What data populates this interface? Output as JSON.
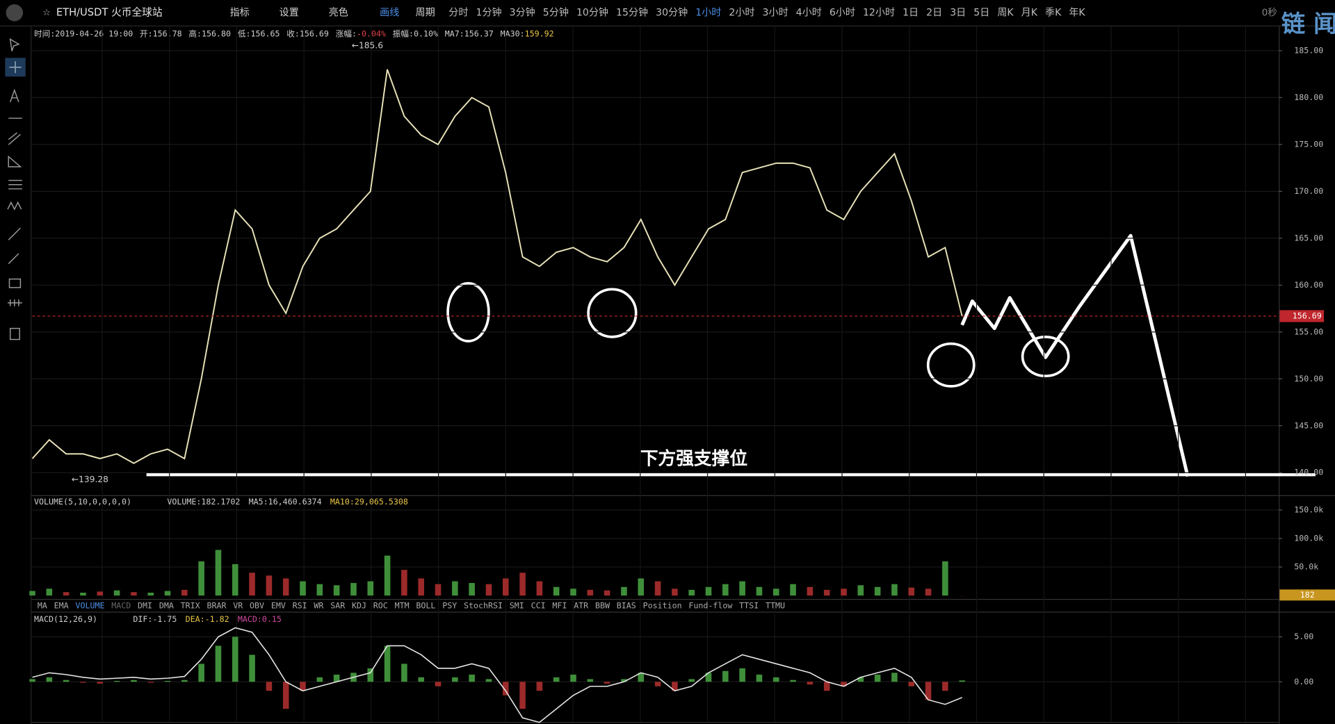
{
  "toolbar": {
    "symbol": "ETH/USDT 火币全球站",
    "buttons": [
      "指标",
      "设置",
      "亮色",
      "画线"
    ],
    "period_label": "周期",
    "periods": [
      "分时",
      "1分钟",
      "3分钟",
      "5分钟",
      "10分钟",
      "15分钟",
      "30分钟",
      "1小时",
      "2小时",
      "3小时",
      "4小时",
      "6小时",
      "12小时",
      "1日",
      "2日",
      "3日",
      "5日",
      "周K",
      "月K",
      "季K",
      "年K"
    ],
    "active_period_index": 7,
    "timer": "0秒"
  },
  "info": [
    {
      "label": "时间:",
      "value": "2019-04-26 19:00"
    },
    {
      "label": "开:",
      "value": "156.78"
    },
    {
      "label": "高:",
      "value": "156.80"
    },
    {
      "label": "低:",
      "value": "156.65"
    },
    {
      "label": "收:",
      "value": "156.69"
    },
    {
      "label": "涨幅:",
      "value": "-0.04%",
      "color": "#e0414a"
    },
    {
      "label": "振幅:",
      "value": "0.10%"
    },
    {
      "label": "MA7:",
      "value": "156.37"
    },
    {
      "label": "MA30:",
      "value": "159.92",
      "color": "#e8c547"
    }
  ],
  "indicator_tabs": [
    "MA",
    "EMA",
    "VOLUME",
    "MACD",
    "DMI",
    "DMA",
    "TRIX",
    "BRAR",
    "VR",
    "OBV",
    "EMV",
    "RSI",
    "WR",
    "SAR",
    "KDJ",
    "ROC",
    "MTM",
    "BOLL",
    "PSY",
    "StochRSI",
    "SMI",
    "CCI",
    "MFI",
    "ATR",
    "BBW",
    "BIAS",
    "Position",
    "Fund-flow",
    "TTSI",
    "TTMU"
  ],
  "active_tab_index": 2,
  "dim_tab_index": 3,
  "volume_header": [
    {
      "text": "VOLUME(5,10,0,0,0,0)"
    },
    {
      "text": "VOLUME:182.1702"
    },
    {
      "text": "MA5:16,460.6374"
    },
    {
      "text": "MA10:29,065.5308",
      "color": "#e8c547"
    }
  ],
  "macd_header": [
    {
      "text": "MACD(12,26,9)"
    },
    {
      "text": "DIF:-1.75"
    },
    {
      "text": "DEA:-1.82",
      "color": "#e8c547"
    },
    {
      "text": "MACD:0.15",
      "color": "#d04aa0"
    }
  ],
  "chart_data": [
    {
      "type": "line",
      "values": [
        141.5,
        143.5,
        142,
        142,
        141.5,
        142,
        141,
        142,
        142.5,
        141.5,
        150,
        160,
        168,
        166,
        160,
        157,
        162,
        165,
        166,
        168,
        170,
        183,
        178,
        176,
        175,
        178,
        180,
        179,
        172,
        163,
        162,
        163.5,
        164,
        163,
        162.5,
        164,
        167,
        163,
        160,
        163,
        166,
        167,
        172,
        172.5,
        173,
        173,
        172.5,
        168,
        167,
        170,
        172,
        174,
        169,
        163,
        164,
        156.69
      ],
      "color": "#e8e2b8",
      "ylim": [
        137.6,
        187.5
      ],
      "yticks": [
        {
          "value": 140,
          "label": "140.00"
        },
        {
          "value": 145,
          "label": "145.00"
        },
        {
          "value": 150,
          "label": "150.00"
        },
        {
          "value": 155,
          "label": "155.00"
        },
        {
          "value": 160,
          "label": "160.00"
        },
        {
          "value": 165,
          "label": "165.00"
        },
        {
          "value": 170,
          "label": "170.00"
        },
        {
          "value": 175,
          "label": "175.00"
        },
        {
          "value": 180,
          "label": "180.00"
        },
        {
          "value": 185,
          "label": "185.00"
        }
      ],
      "last_price": {
        "value": 156.69,
        "label": "156.69"
      },
      "annotations": [
        "←185.6",
        "←139.28",
        "下方强支撑位"
      ],
      "grid": true
    },
    {
      "type": "bar",
      "values": [
        8000,
        12000,
        6000,
        5000,
        7000,
        9000,
        6000,
        5000,
        8000,
        10000,
        60000,
        80000,
        55000,
        40000,
        35000,
        30000,
        25000,
        20000,
        18000,
        22000,
        25000,
        70000,
        45000,
        30000,
        20000,
        25000,
        22000,
        20000,
        30000,
        40000,
        25000,
        15000,
        12000,
        10000,
        9000,
        15000,
        30000,
        25000,
        12000,
        10000,
        15000,
        20000,
        25000,
        15000,
        12000,
        20000,
        15000,
        10000,
        12000,
        18000,
        15000,
        20000,
        14000,
        12000,
        60000,
        182.1702
      ],
      "up_color": "#3f8f3a",
      "down_color": "#9c2a2a",
      "ylim": [
        0,
        173000
      ],
      "yticks": [
        {
          "value": 50000,
          "label": "50.0k"
        },
        {
          "value": 100000,
          "label": "100.0k"
        },
        {
          "value": 150000,
          "label": "150.0k"
        }
      ],
      "last_value": {
        "value": 182.1702,
        "label": "182"
      }
    },
    {
      "type": "macd",
      "values": [
        0.3,
        0.5,
        0.2,
        -0.1,
        -0.2,
        0.1,
        0.2,
        -0.1,
        0.1,
        0.2,
        2,
        4,
        5,
        3,
        -1,
        -3,
        -1,
        0.5,
        0.8,
        1,
        1.5,
        4,
        2,
        0.5,
        -0.5,
        0.5,
        0.8,
        0.3,
        -1.5,
        -3,
        -1,
        0.5,
        0.8,
        0.3,
        -0.2,
        0.3,
        1,
        -0.5,
        -1,
        0.3,
        1,
        1.2,
        1.5,
        0.8,
        0.5,
        0.2,
        -0.3,
        -1,
        -0.5,
        0.5,
        0.8,
        1,
        -0.5,
        -2,
        -1,
        0.15
      ],
      "dif": [
        0.5,
        1,
        0.8,
        0.5,
        0.3,
        0.4,
        0.5,
        0.3,
        0.4,
        0.6,
        2.5,
        5,
        6,
        5.5,
        3,
        0,
        -1,
        -0.5,
        0,
        0.5,
        1,
        4,
        4,
        3,
        1.5,
        1.5,
        2,
        1.5,
        -1,
        -4,
        -4.5,
        -3,
        -1.5,
        -0.5,
        -0.5,
        0,
        1,
        0.5,
        -1,
        -0.5,
        1,
        2,
        3,
        2.5,
        2,
        1.5,
        1,
        0,
        -0.5,
        0.5,
        1,
        1.5,
        0.5,
        -2,
        -2.5,
        -1.75
      ],
      "up_color": "#3f8f3a",
      "down_color": "#9c2a2a",
      "line_color": "#e6e6e6",
      "ylim": [
        -4.4,
        7.5
      ],
      "yticks": [
        {
          "value": 0,
          "label": "0.00"
        },
        {
          "value": 5,
          "label": "5.00"
        }
      ]
    }
  ]
}
